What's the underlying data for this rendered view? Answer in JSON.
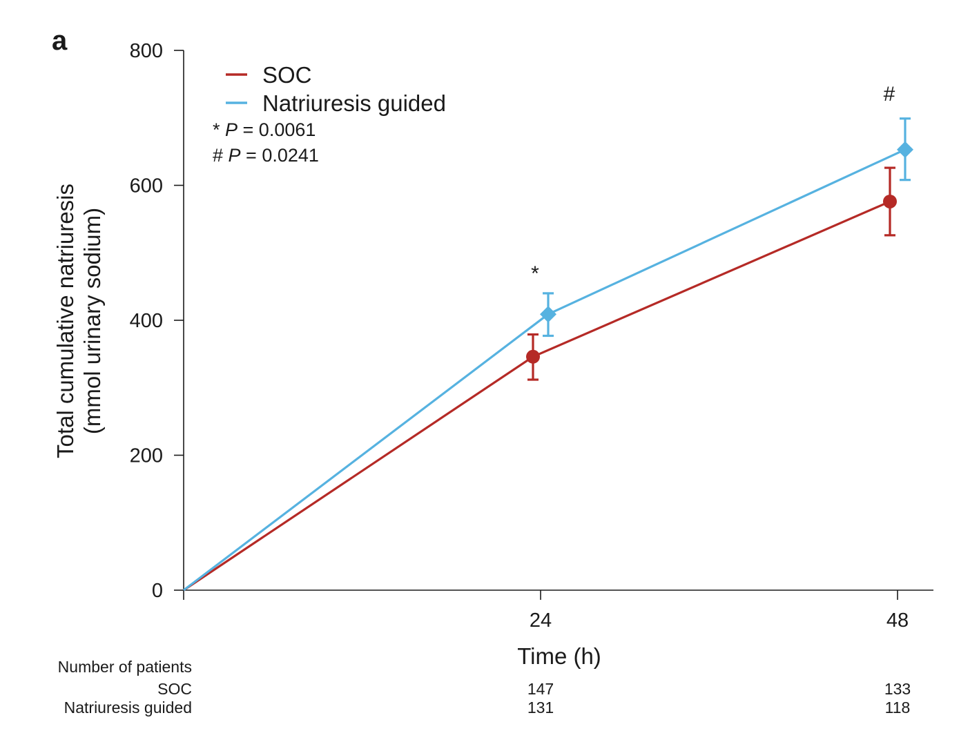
{
  "panel_label": "a",
  "chart_data": {
    "type": "line",
    "x": [
      0,
      24,
      48
    ],
    "x_ticks": [
      24,
      48
    ],
    "xlim": [
      0,
      50
    ],
    "ylim": [
      0,
      800
    ],
    "y_ticks": [
      0,
      200,
      400,
      600,
      800
    ],
    "xlabel": "Time (h)",
    "ylabel_line1": "Total cumulative natriuresis",
    "ylabel_line2": "(mmol urinary sodium)",
    "legend_position": "top-left",
    "grid": false,
    "series": [
      {
        "name": "SOC",
        "color": "#b52a26",
        "marker": "circle",
        "values": [
          0,
          346,
          576
        ],
        "error_low": [
          0,
          312,
          526
        ],
        "error_high": [
          0,
          379,
          626
        ]
      },
      {
        "name": "Natriuresis guided",
        "color": "#56b2e0",
        "marker": "diamond",
        "values": [
          0,
          409,
          653
        ],
        "error_low": [
          0,
          377,
          608
        ],
        "error_high": [
          0,
          440,
          699
        ]
      }
    ],
    "annotations": [
      {
        "symbol": "*",
        "at_x": 24,
        "p_label": "P",
        "p_value": "= 0.0061"
      },
      {
        "symbol": "#",
        "at_x": 48,
        "p_label": "P",
        "p_value": "= 0.0241"
      }
    ]
  },
  "patients_table": {
    "header": "Number of patients",
    "rows": [
      {
        "label": "SOC",
        "values": [
          "147",
          "133"
        ]
      },
      {
        "label": "Natriuresis guided",
        "values": [
          "131",
          "118"
        ]
      }
    ]
  }
}
